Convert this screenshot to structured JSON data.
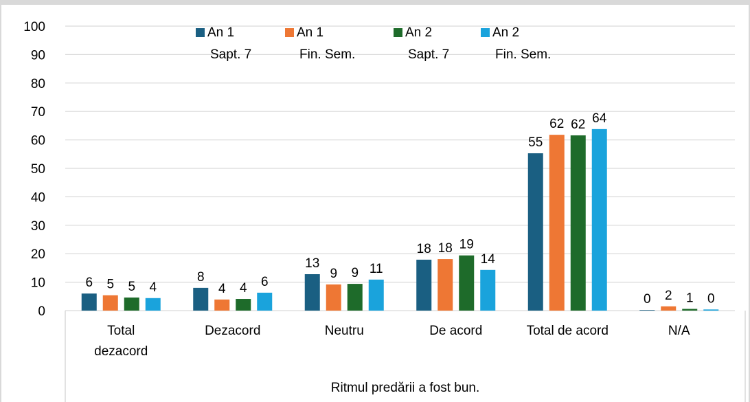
{
  "chart_data": {
    "type": "bar",
    "x_label": "Ritmul predării a fost bun.",
    "categories": [
      "Total dezacord",
      "Dezacord",
      "Neutru",
      "De acord",
      "Total de acord",
      "N/A"
    ],
    "series": [
      {
        "name": "An 1 Sapt. 7",
        "color": "#1a5f82",
        "values": [
          6.0,
          8.0,
          12.8,
          17.9,
          55.3,
          0.2
        ],
        "value_labels": [
          "6",
          "8",
          "13",
          "18",
          "55",
          "0"
        ]
      },
      {
        "name": "An 1 Fin. Sem.",
        "color": "#ee7734",
        "values": [
          5.4,
          3.9,
          9.2,
          18.1,
          61.8,
          1.5
        ],
        "value_labels": [
          "5",
          "4",
          "9",
          "18",
          "62",
          "2"
        ]
      },
      {
        "name": "An 2 Sapt. 7",
        "color": "#1e6b2a",
        "values": [
          4.6,
          4.1,
          9.4,
          19.4,
          61.6,
          0.6
        ],
        "value_labels": [
          "5",
          "4",
          "9",
          "19",
          "62",
          "1"
        ]
      },
      {
        "name": "An 2 Fin. Sem.",
        "color": "#1aa3dc",
        "values": [
          4.4,
          6.3,
          10.9,
          14.3,
          63.8,
          0.4
        ],
        "value_labels": [
          "4",
          "6",
          "11",
          "14",
          "64",
          "0"
        ]
      }
    ],
    "ylim": [
      0,
      100
    ],
    "yticks": [
      0,
      10,
      20,
      30,
      40,
      50,
      60,
      70,
      80,
      90,
      100
    ],
    "grid": true,
    "legend": "top"
  }
}
